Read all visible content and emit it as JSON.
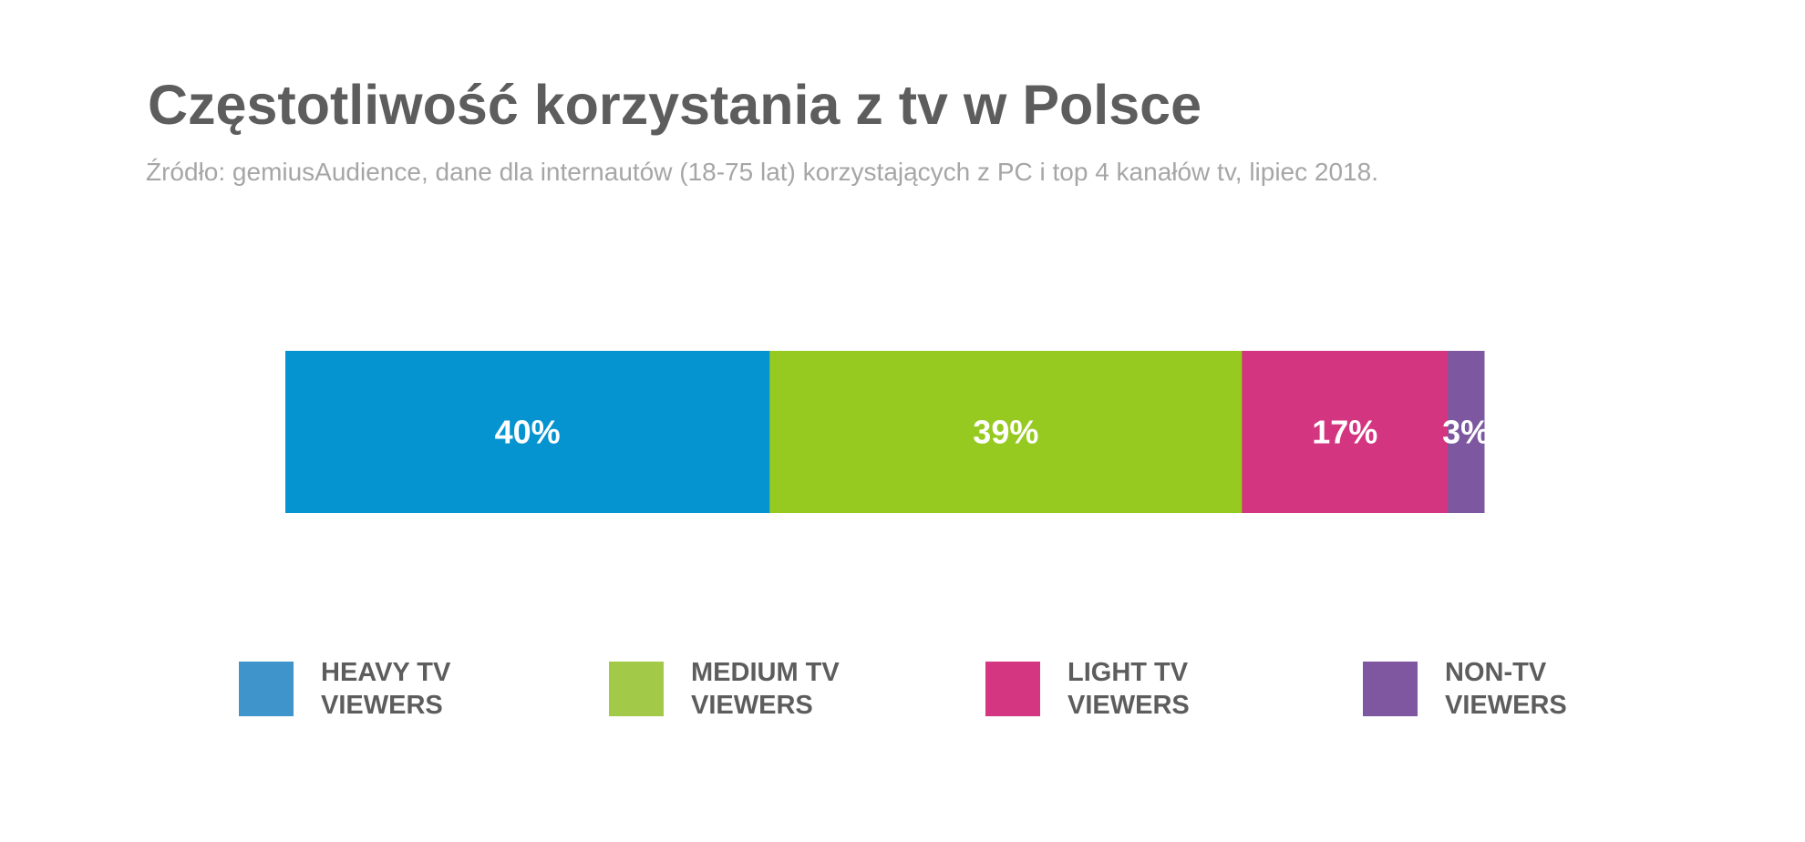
{
  "chart_data": {
    "type": "bar",
    "orientation": "horizontal",
    "stacked": true,
    "title": "Częstotliwość korzystania z tv w Polsce",
    "subtitle": "Źródło: gemiusAudience, dane dla internautów (18-75 lat) korzystających z PC i top 4 kanałów tv, lipiec 2018.",
    "xlabel": "",
    "ylabel": "",
    "grid": false,
    "legend_position": "bottom",
    "segments": [
      {
        "name": "HEAVY TV\nVIEWERS",
        "value": 40,
        "label": "40%",
        "color": "#0694d0",
        "legend_color": "#3f94cb"
      },
      {
        "name": "MEDIUM TV\nVIEWERS",
        "value": 39,
        "label": "39%",
        "color": "#97ca21",
        "legend_color": "#a2ca48"
      },
      {
        "name": "LIGHT TV\nVIEWERS",
        "value": 17,
        "label": "17%",
        "color": "#d33580",
        "legend_color": "#d43682"
      },
      {
        "name": "NON-TV\nVIEWERS",
        "value": 3,
        "label": "3%",
        "color": "#7d58a0",
        "legend_color": "#7e57a0"
      }
    ]
  }
}
